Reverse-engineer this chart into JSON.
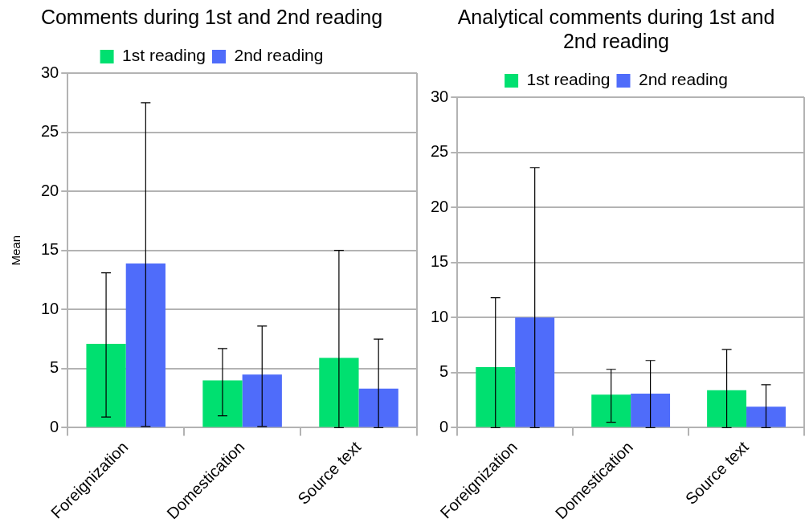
{
  "chart_data": [
    {
      "type": "bar",
      "title": "Comments during 1st and 2nd reading",
      "ylabel": "Mean",
      "categories": [
        "Foreignization",
        "Domestication",
        "Source text"
      ],
      "series": [
        {
          "name": "1st reading",
          "color": "#00e070",
          "values": [
            7.1,
            4.0,
            5.9
          ],
          "errors": [
            [
              0.9,
              13.1
            ],
            [
              1.0,
              6.7
            ],
            [
              0,
              15.0
            ]
          ]
        },
        {
          "name": "2nd reading",
          "color": "#4f6cfa",
          "values": [
            13.9,
            4.5,
            3.3
          ],
          "errors": [
            [
              0.1,
              27.5
            ],
            [
              0.1,
              8.6
            ],
            [
              0,
              7.5
            ]
          ]
        }
      ],
      "ylim": [
        0,
        30
      ],
      "yticks": [
        0,
        5,
        10,
        15,
        20,
        25,
        30
      ],
      "grid": "y",
      "legend": "top"
    },
    {
      "type": "bar",
      "title": "Analytical comments during 1st and 2nd reading",
      "categories": [
        "Foreignization",
        "Domestication",
        "Source text"
      ],
      "series": [
        {
          "name": "1st reading",
          "color": "#00e070",
          "values": [
            5.5,
            3.0,
            3.4
          ],
          "errors": [
            [
              0,
              11.8
            ],
            [
              0.5,
              5.3
            ],
            [
              0,
              7.1
            ]
          ]
        },
        {
          "name": "2nd reading",
          "color": "#4f6cfa",
          "values": [
            10.0,
            3.1,
            1.9
          ],
          "errors": [
            [
              0,
              23.6
            ],
            [
              0,
              6.1
            ],
            [
              0,
              3.9
            ]
          ]
        }
      ],
      "ylim": [
        0,
        30
      ],
      "yticks": [
        0,
        5,
        10,
        15,
        20,
        25,
        30
      ],
      "grid": "y",
      "legend": "top"
    }
  ]
}
